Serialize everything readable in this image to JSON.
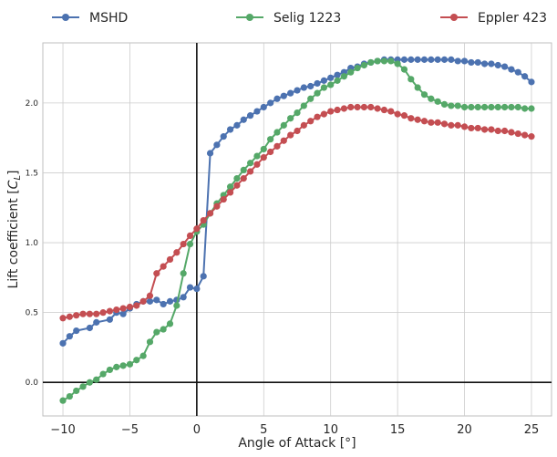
{
  "chart_data": {
    "type": "line",
    "xlabel": "Angle of Attack [$^\\circ$]",
    "ylabel": "Lift coefficient [$C_L$]",
    "xlim": [
      -11.5,
      26.5
    ],
    "ylim": [
      -0.24,
      2.43
    ],
    "xticks": [
      -10,
      -5,
      0,
      5,
      10,
      15,
      20,
      25
    ],
    "xtick_labels": [
      "−10",
      "−5",
      "0",
      "5",
      "10",
      "15",
      "20",
      "25"
    ],
    "yticks": [
      0.0,
      0.5,
      1.0,
      1.5,
      2.0
    ],
    "ytick_labels": [
      "0.0",
      "0.5",
      "1.0",
      "1.5",
      "2.0"
    ],
    "grid": true,
    "reference_lines": {
      "x": 0,
      "y": 0
    },
    "legend_placement": "top, above plot, 3 columns",
    "series": [
      {
        "name": "MSHD",
        "color": "#4c72b0",
        "x": [
          -10,
          -9.5,
          -9,
          -8,
          -7.5,
          -6.5,
          -6,
          -5.5,
          -5,
          -4.5,
          -4,
          -3.5,
          -3,
          -2.5,
          -2,
          -1.5,
          -1,
          -0.5,
          0,
          0.5,
          1,
          1.5,
          2,
          2.5,
          3,
          3.5,
          4,
          4.5,
          5,
          5.5,
          6,
          6.5,
          7,
          7.5,
          8,
          8.5,
          9,
          9.5,
          10,
          10.5,
          11,
          11.5,
          12,
          12.5,
          13,
          13.5,
          14,
          14.5,
          15,
          15.5,
          16,
          16.5,
          17,
          17.5,
          18,
          18.5,
          19,
          19.5,
          20,
          20.5,
          21,
          21.5,
          22,
          22.5,
          23,
          23.5,
          24,
          24.5,
          25
        ],
        "y": [
          0.28,
          0.33,
          0.37,
          0.39,
          0.43,
          0.45,
          0.5,
          0.49,
          0.53,
          0.56,
          0.58,
          0.58,
          0.59,
          0.56,
          0.58,
          0.59,
          0.61,
          0.68,
          0.67,
          0.76,
          1.64,
          1.7,
          1.76,
          1.81,
          1.84,
          1.88,
          1.91,
          1.94,
          1.97,
          2.0,
          2.03,
          2.05,
          2.07,
          2.09,
          2.11,
          2.12,
          2.14,
          2.16,
          2.18,
          2.2,
          2.22,
          2.25,
          2.26,
          2.28,
          2.29,
          2.3,
          2.31,
          2.31,
          2.31,
          2.31,
          2.31,
          2.31,
          2.31,
          2.31,
          2.31,
          2.31,
          2.31,
          2.3,
          2.3,
          2.29,
          2.29,
          2.28,
          2.28,
          2.27,
          2.26,
          2.24,
          2.22,
          2.19,
          2.15
        ]
      },
      {
        "name": "Selig 1223",
        "color": "#55a868",
        "x": [
          -10,
          -9.5,
          -9,
          -8.5,
          -8,
          -7.5,
          -7,
          -6.5,
          -6,
          -5.5,
          -5,
          -4.5,
          -4,
          -3.5,
          -3,
          -2.5,
          -2,
          -1.5,
          -1,
          -0.5,
          0,
          0.5,
          1,
          1.5,
          2,
          2.5,
          3,
          3.5,
          4,
          4.5,
          5,
          5.5,
          6,
          6.5,
          7,
          7.5,
          8,
          8.5,
          9,
          9.5,
          10,
          10.5,
          11,
          11.5,
          12,
          12.5,
          13,
          13.5,
          14,
          14.5,
          15,
          15.5,
          16,
          16.5,
          17,
          17.5,
          18,
          18.5,
          19,
          19.5,
          20,
          20.5,
          21,
          21.5,
          22,
          22.5,
          23,
          23.5,
          24,
          24.5,
          25
        ],
        "y": [
          -0.13,
          -0.1,
          -0.06,
          -0.03,
          0.0,
          0.02,
          0.06,
          0.09,
          0.11,
          0.12,
          0.13,
          0.16,
          0.19,
          0.29,
          0.36,
          0.38,
          0.42,
          0.55,
          0.78,
          0.99,
          1.08,
          1.13,
          1.21,
          1.28,
          1.34,
          1.4,
          1.46,
          1.52,
          1.57,
          1.62,
          1.67,
          1.74,
          1.79,
          1.84,
          1.89,
          1.93,
          1.98,
          2.03,
          2.07,
          2.11,
          2.13,
          2.16,
          2.19,
          2.22,
          2.25,
          2.27,
          2.29,
          2.3,
          2.3,
          2.3,
          2.28,
          2.24,
          2.17,
          2.11,
          2.06,
          2.03,
          2.01,
          1.99,
          1.98,
          1.98,
          1.97,
          1.97,
          1.97,
          1.97,
          1.97,
          1.97,
          1.97,
          1.97,
          1.97,
          1.96,
          1.96
        ]
      },
      {
        "name": "Eppler 423",
        "color": "#c44e52",
        "x": [
          -10,
          -9.5,
          -9,
          -8.5,
          -8,
          -7.5,
          -7,
          -6.5,
          -6,
          -5.5,
          -5,
          -4.5,
          -4,
          -3.5,
          -3,
          -2.5,
          -2,
          -1.5,
          -1,
          -0.5,
          0,
          0.5,
          1,
          1.5,
          2,
          2.5,
          3,
          3.5,
          4,
          4.5,
          5,
          5.5,
          6,
          6.5,
          7,
          7.5,
          8,
          8.5,
          9,
          9.5,
          10,
          10.5,
          11,
          11.5,
          12,
          12.5,
          13,
          13.5,
          14,
          14.5,
          15,
          15.5,
          16,
          16.5,
          17,
          17.5,
          18,
          18.5,
          19,
          19.5,
          20,
          20.5,
          21,
          21.5,
          22,
          22.5,
          23,
          23.5,
          24,
          24.5,
          25
        ],
        "y": [
          0.46,
          0.47,
          0.48,
          0.49,
          0.49,
          0.49,
          0.5,
          0.51,
          0.52,
          0.53,
          0.54,
          0.55,
          0.58,
          0.62,
          0.78,
          0.83,
          0.88,
          0.93,
          0.99,
          1.05,
          1.1,
          1.16,
          1.21,
          1.26,
          1.31,
          1.36,
          1.41,
          1.46,
          1.51,
          1.56,
          1.61,
          1.65,
          1.69,
          1.73,
          1.77,
          1.8,
          1.84,
          1.87,
          1.9,
          1.92,
          1.94,
          1.95,
          1.96,
          1.97,
          1.97,
          1.97,
          1.97,
          1.96,
          1.95,
          1.94,
          1.92,
          1.91,
          1.89,
          1.88,
          1.87,
          1.86,
          1.86,
          1.85,
          1.84,
          1.84,
          1.83,
          1.82,
          1.82,
          1.81,
          1.81,
          1.8,
          1.8,
          1.79,
          1.78,
          1.77,
          1.76
        ]
      }
    ]
  }
}
